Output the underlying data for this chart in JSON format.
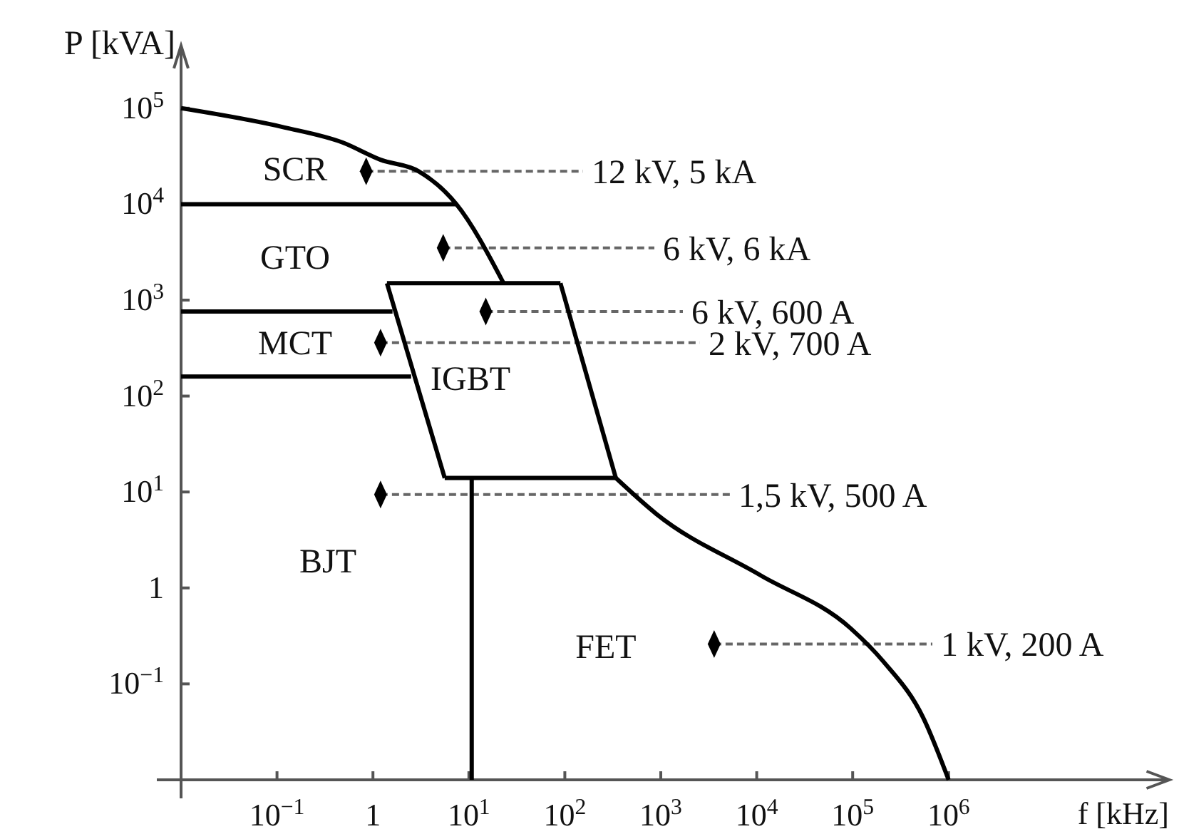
{
  "chart_data": {
    "type": "line",
    "xlabel": "f [kHz]",
    "ylabel": "P [kVA]",
    "log": "xy",
    "grid": false,
    "xlim": [
      0.01,
      200000000
    ],
    "ylim": [
      0.01,
      450000
    ],
    "xticks": [
      {
        "value": 0.1,
        "label": "10$^{−1}$"
      },
      1,
      {
        "value": 10,
        "label": "10$^{1}$"
      },
      {
        "value": 100,
        "label": "10$^{2}$"
      },
      {
        "value": 1000,
        "label": "10$^{3}$"
      },
      {
        "value": 10000,
        "label": "10$^{4}$"
      },
      {
        "value": 100000,
        "label": "10$^{5}$"
      },
      {
        "value": 1000000,
        "label": "10$^{6}$"
      }
    ],
    "yticks": [
      {
        "value": 0.1,
        "label": "10$^{−1}$"
      },
      1,
      {
        "value": 10,
        "label": "10$^{1}$"
      },
      {
        "value": 100,
        "label": "10$^{2}$"
      },
      {
        "value": 1000,
        "label": "10$^{3}$"
      },
      {
        "value": 10000,
        "label": "10$^{4}$"
      },
      {
        "value": 100000,
        "label": "10$^{5}$"
      }
    ],
    "series": [
      {
        "color": "#000000",
        "marker": "none",
        "x": [
          0.01,
          0.12,
          0.48,
          1.2,
          3,
          7.4,
          23
        ],
        "values": [
          100000,
          63000,
          44000,
          29000,
          22000,
          10000,
          1500
        ]
      },
      {
        "color": "#000000",
        "marker": "none",
        "x": [
          0.01,
          7.4
        ],
        "values": [
          10000,
          10000
        ]
      },
      {
        "color": "#000000",
        "marker": "none",
        "x": [
          0.01,
          1.6
        ],
        "values": [
          760,
          760
        ]
      },
      {
        "color": "#000000",
        "marker": "none",
        "x": [
          0.01,
          2.5
        ],
        "values": [
          160,
          160
        ]
      },
      {
        "color": "#000000",
        "marker": "none",
        "x": [
          1.4,
          90
        ],
        "values": [
          1500,
          1500
        ]
      },
      {
        "color": "#000000",
        "marker": "none",
        "x": [
          1.4,
          5.6
        ],
        "values": [
          1500,
          14
        ]
      },
      {
        "color": "#000000",
        "marker": "none",
        "x": [
          90,
          340
        ],
        "values": [
          1500,
          14
        ]
      },
      {
        "color": "#000000",
        "marker": "none",
        "x": [
          5.6,
          340
        ],
        "values": [
          14,
          14
        ]
      },
      {
        "color": "#000000",
        "marker": "none",
        "x": [
          10.7,
          10.7
        ],
        "values": [
          14,
          0.01
        ]
      },
      {
        "color": "#000000",
        "marker": "none",
        "x": [
          340,
          900,
          11000,
          95000,
          210000,
          540000,
          1000000
        ],
        "values": [
          14,
          5.9,
          1.35,
          0.38,
          0.17,
          0.045,
          0.01
        ]
      },
      {
        "type": "scatter",
        "color": "#000000",
        "marker": "diamond",
        "x": [
          0.85,
          5.4,
          15,
          1.2,
          1.2,
          3600
        ],
        "values": [
          22000,
          3500,
          760,
          360,
          9.4,
          0.26
        ]
      }
    ],
    "annotations": [
      {
        "text": "12 kV, 5 kA",
        "x": 0.85,
        "y": 22000
      },
      {
        "text": "6 kV, 6 kA",
        "x": 5.4,
        "y": 3500
      },
      {
        "text": "6 kV, 600 A",
        "x": 15,
        "y": 760
      },
      {
        "text": "2 kV, 700 A",
        "x": 1.2,
        "y": 360
      },
      {
        "text": "1,5 kV, 500 A",
        "x": 1.2,
        "y": 9.4
      },
      {
        "text": "1 kV, 200 A",
        "x": 3600,
        "y": 0.26
      },
      "SCR",
      "GTO",
      "MCT",
      "IGBT",
      "BJT",
      "FET"
    ]
  }
}
